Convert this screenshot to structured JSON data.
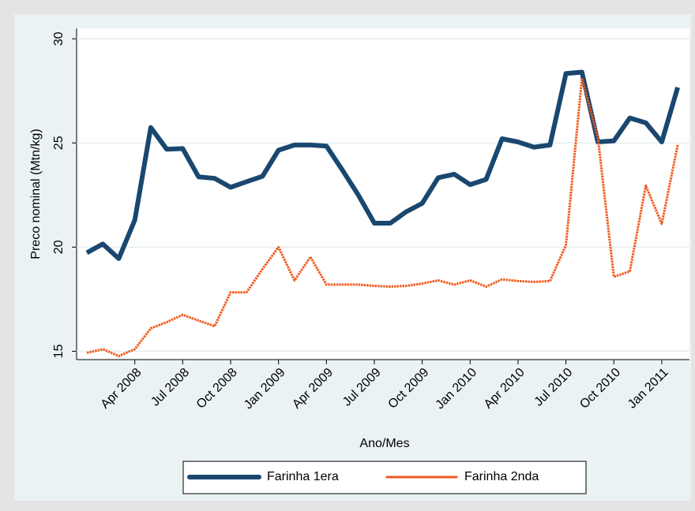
{
  "chart_data": {
    "type": "line",
    "x_label": "Ano/Mes",
    "y_label": "Preco nominal (Mtn/kg)",
    "categories": [
      null,
      null,
      null,
      "Apr 2008",
      null,
      null,
      "Jul 2008",
      null,
      null,
      "Oct 2008",
      null,
      null,
      "Jan 2009",
      null,
      null,
      "Apr 2009",
      null,
      null,
      "Jul 2009",
      null,
      null,
      "Oct 2009",
      null,
      null,
      "Jan 2010",
      null,
      null,
      "Apr 2010",
      null,
      null,
      "Jul 2010",
      null,
      null,
      "Oct 2010",
      null,
      null,
      "Jan 2011",
      null
    ],
    "series": [
      {
        "name": "Farinha 1era",
        "color": "#1a476f",
        "values": [
          19.73,
          20.15,
          19.45,
          21.3,
          25.74,
          24.7,
          24.73,
          23.37,
          23.3,
          22.87,
          23.14,
          23.4,
          24.65,
          24.9,
          24.9,
          24.85,
          23.7,
          22.5,
          21.15,
          21.15,
          21.7,
          22.1,
          23.33,
          23.5,
          23.0,
          23.25,
          25.2,
          25.05,
          24.8,
          24.9,
          28.33,
          28.4,
          25.05,
          25.1,
          26.2,
          25.97,
          25.05,
          27.67
        ]
      },
      {
        "name": "Farinha 2nda",
        "color": "#f05a1e",
        "values": [
          14.92,
          15.1,
          14.77,
          15.1,
          16.1,
          16.4,
          16.75,
          16.47,
          16.2,
          17.83,
          17.83,
          18.95,
          20.0,
          18.4,
          19.53,
          18.2,
          18.2,
          18.2,
          18.14,
          18.1,
          18.14,
          18.25,
          18.4,
          18.2,
          18.4,
          18.1,
          18.45,
          18.37,
          18.33,
          18.37,
          20.1,
          28.1,
          25.27,
          18.57,
          18.84,
          22.95,
          21.12,
          24.9
        ]
      }
    ],
    "ylim": [
      14.6,
      30.5
    ],
    "yticks": [
      15,
      20,
      25,
      30
    ],
    "grid": true,
    "legend": "bottom"
  }
}
